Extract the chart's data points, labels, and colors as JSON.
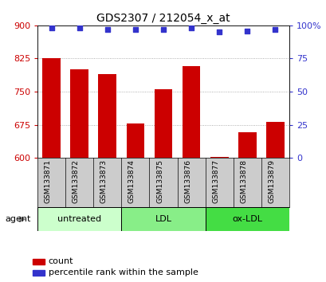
{
  "title": "GDS2307 / 212054_x_at",
  "categories": [
    "GSM133871",
    "GSM133872",
    "GSM133873",
    "GSM133874",
    "GSM133875",
    "GSM133876",
    "GSM133877",
    "GSM133878",
    "GSM133879"
  ],
  "counts": [
    825,
    800,
    790,
    678,
    755,
    808,
    603,
    658,
    682
  ],
  "percentile_ranks": [
    98,
    98,
    97,
    97,
    97,
    98,
    95,
    96,
    97
  ],
  "ylim_left": [
    600,
    900
  ],
  "ylim_right": [
    0,
    100
  ],
  "yticks_left": [
    600,
    675,
    750,
    825,
    900
  ],
  "yticks_right": [
    0,
    25,
    50,
    75,
    100
  ],
  "ytick_labels_right": [
    "0",
    "25",
    "50",
    "75",
    "100%"
  ],
  "bar_color": "#cc0000",
  "scatter_color": "#3333cc",
  "bar_width": 0.65,
  "groups": [
    {
      "label": "untreated",
      "indices": [
        0,
        1,
        2
      ],
      "color": "#ccffcc"
    },
    {
      "label": "LDL",
      "indices": [
        3,
        4,
        5
      ],
      "color": "#88ee88"
    },
    {
      "label": "ox-LDL",
      "indices": [
        6,
        7,
        8
      ],
      "color": "#44dd44"
    }
  ],
  "agent_label": "agent",
  "legend_count_label": "count",
  "legend_pct_label": "percentile rank within the sample",
  "grid_color": "#999999",
  "label_bg_color": "#cccccc",
  "plot_bg": "#ffffff",
  "left_tick_color": "#cc0000",
  "right_tick_color": "#3333cc",
  "label_fontsize": 6.5,
  "title_fontsize": 10
}
